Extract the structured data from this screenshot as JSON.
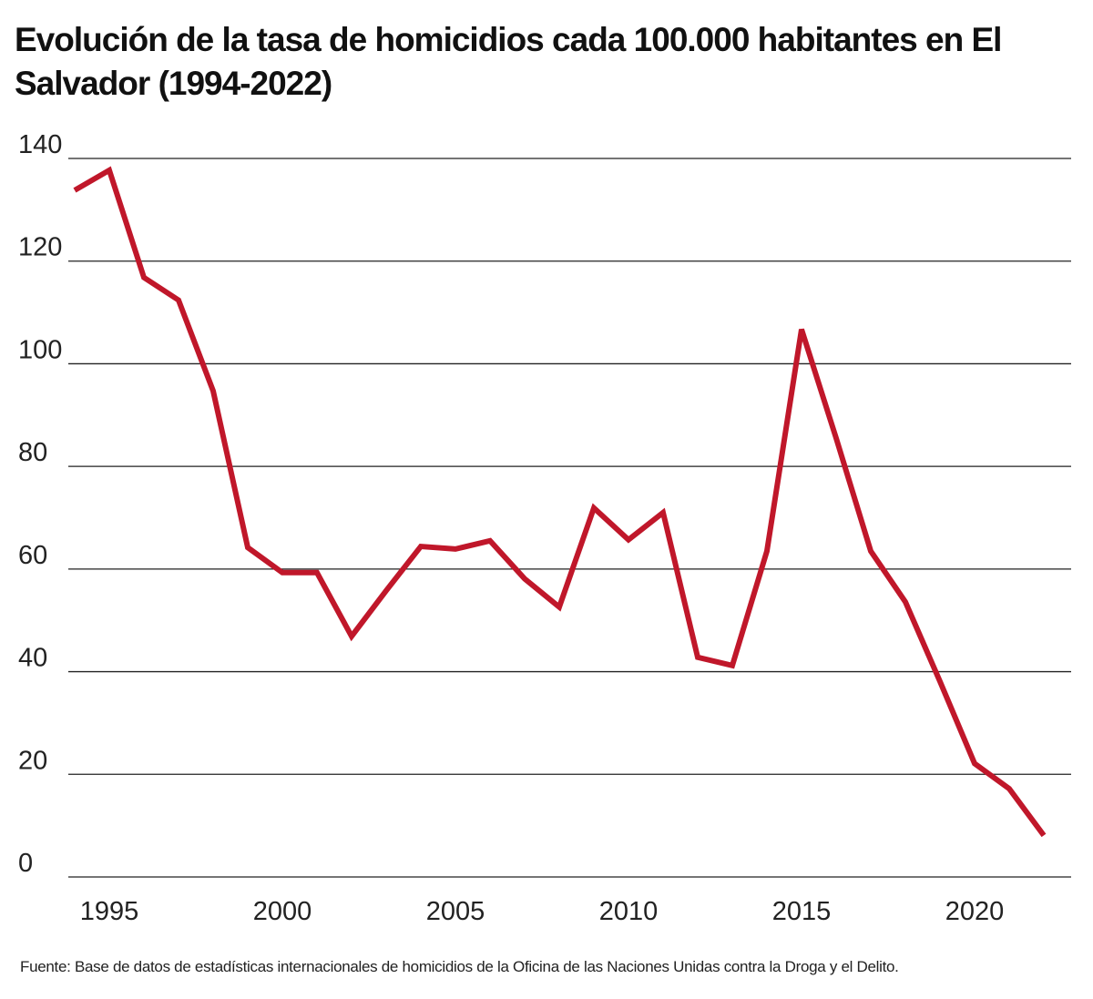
{
  "chart_data": {
    "type": "line",
    "title": "Evolución de la tasa de homicidios cada 100.000 habitantes en El Salvador (1994-2022)",
    "xlabel": "",
    "ylabel": "",
    "ylim": [
      0,
      140
    ],
    "xlim": [
      1994,
      2022
    ],
    "yticks": [
      0,
      20,
      40,
      60,
      80,
      100,
      120,
      140
    ],
    "xticks": [
      1995,
      2000,
      2005,
      2010,
      2015,
      2020
    ],
    "grid": true,
    "series": [
      {
        "name": "Tasa de homicidios",
        "color": "#c0172a",
        "x": [
          1994,
          1995,
          1996,
          1997,
          1998,
          1999,
          2000,
          2001,
          2002,
          2003,
          2004,
          2005,
          2006,
          2007,
          2008,
          2009,
          2010,
          2011,
          2012,
          2013,
          2014,
          2015,
          2016,
          2017,
          2018,
          2019,
          2020,
          2021,
          2022
        ],
        "values": [
          133.8,
          137.7,
          116.8,
          112.4,
          94.7,
          64.2,
          59.3,
          59.3,
          46.9,
          55.8,
          64.4,
          63.9,
          65.5,
          58.1,
          52.6,
          71.9,
          65.7,
          71.0,
          42.8,
          41.2,
          63.5,
          106.7,
          85.5,
          63.5,
          53.6,
          38.1,
          22.1,
          17.2,
          8.1
        ]
      }
    ],
    "source": "Fuente: Base de datos de estadísticas internacionales de homicidios de la Oficina de las Naciones Unidas contra la Droga y el Delito."
  }
}
